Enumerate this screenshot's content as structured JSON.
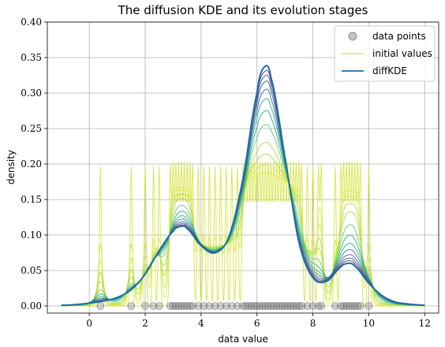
{
  "chart_data": {
    "type": "line",
    "title": "The diffusion KDE and its evolution stages",
    "xlabel": "data value",
    "ylabel": "density",
    "xlim": [
      -1.5,
      12.5
    ],
    "ylim": [
      -0.01,
      0.4
    ],
    "xticks": [
      0,
      2,
      4,
      6,
      8,
      10,
      12
    ],
    "yticks": [
      0.0,
      0.05,
      0.1,
      0.15,
      0.2,
      0.25,
      0.3,
      0.35,
      0.4
    ],
    "ytick_labels": [
      "0.00",
      "0.05",
      "0.10",
      "0.15",
      "0.20",
      "0.25",
      "0.30",
      "0.35",
      "0.40"
    ],
    "grid": true,
    "legend_position": "top-right",
    "legend": [
      {
        "label": "data points",
        "marker": "circle",
        "color": "#808080"
      },
      {
        "label": "initial values",
        "marker": "line",
        "color": "#d4e338"
      },
      {
        "label": "diffKDE",
        "marker": "line",
        "color": "#1f6fa6"
      }
    ],
    "colors": {
      "data_points": "#8c8c8c",
      "initial": "#d4e338",
      "diffkde": "#1f6fa6",
      "stage_colormap": [
        "#d9e84a",
        "#a8db34",
        "#5ec962",
        "#21a685",
        "#2c728e",
        "#3b518b",
        "#472d7b"
      ]
    },
    "data_points": [
      0.4,
      1.5,
      2.0,
      2.3,
      2.5,
      2.9,
      3.0,
      3.1,
      3.2,
      3.3,
      3.4,
      3.5,
      3.6,
      3.7,
      3.9,
      4.1,
      4.3,
      4.5,
      4.7,
      4.9,
      5.1,
      5.3,
      5.5,
      5.6,
      5.7,
      5.8,
      5.9,
      6.0,
      6.1,
      6.2,
      6.3,
      6.4,
      6.5,
      6.6,
      6.7,
      6.8,
      6.9,
      7.0,
      7.1,
      7.2,
      7.3,
      7.4,
      7.5,
      7.6,
      7.8,
      8.0,
      8.2,
      8.3,
      8.8,
      9.0,
      9.1,
      9.2,
      9.3,
      9.4,
      9.5,
      9.6,
      9.7,
      10.0
    ],
    "series": [
      {
        "name": "diffKDE",
        "x": [
          -1.0,
          -0.5,
          0.0,
          0.5,
          1.0,
          1.5,
          2.0,
          2.5,
          3.0,
          3.25,
          3.5,
          4.0,
          4.5,
          5.0,
          5.5,
          6.0,
          6.25,
          6.5,
          7.0,
          7.5,
          8.0,
          8.5,
          9.0,
          9.25,
          9.5,
          10.0,
          10.5,
          11.0,
          12.0
        ],
        "y": [
          0.001,
          0.002,
          0.004,
          0.007,
          0.012,
          0.023,
          0.045,
          0.078,
          0.105,
          0.112,
          0.109,
          0.085,
          0.075,
          0.098,
          0.18,
          0.3,
          0.336,
          0.322,
          0.21,
          0.09,
          0.04,
          0.035,
          0.055,
          0.06,
          0.056,
          0.032,
          0.014,
          0.005,
          0.001
        ]
      }
    ]
  }
}
